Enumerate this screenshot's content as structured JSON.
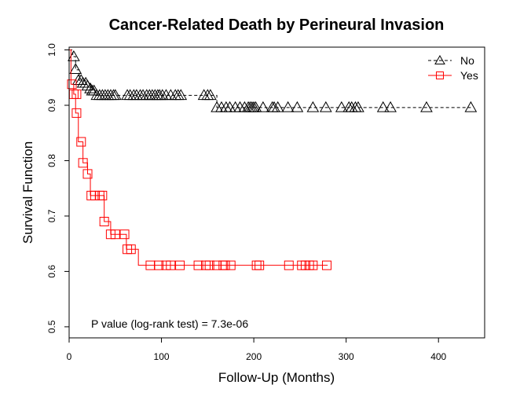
{
  "chart_data": {
    "type": "line",
    "title": "Cancer-Related Death by Perineural Invasion",
    "xlabel": "Follow-Up (Months)",
    "ylabel": "Survival Function",
    "xlim": [
      0,
      450
    ],
    "ylim": [
      0.48,
      1.005
    ],
    "xticks": [
      0,
      100,
      200,
      300,
      400
    ],
    "yticks": [
      0.5,
      0.6,
      0.7,
      0.8,
      0.9,
      1.0
    ],
    "grid": false,
    "legend_position": "top-right",
    "annotation": "P value (log-rank test) = 7.3e-06",
    "series": [
      {
        "name": "No",
        "color": "#000000",
        "line_style": "dashed",
        "marker": "triangle",
        "steps": [
          [
            0,
            1.0
          ],
          [
            4,
            0.988
          ],
          [
            7,
            0.964
          ],
          [
            11,
            0.945
          ],
          [
            18,
            0.938
          ],
          [
            23,
            0.928
          ],
          [
            28,
            0.918
          ],
          [
            160,
            0.896
          ],
          [
            435,
            0.896
          ]
        ],
        "censored": [
          [
            5,
            0.988
          ],
          [
            7,
            0.965
          ],
          [
            10,
            0.945
          ],
          [
            13,
            0.945
          ],
          [
            15,
            0.94
          ],
          [
            18,
            0.94
          ],
          [
            20,
            0.935
          ],
          [
            23,
            0.93
          ],
          [
            25,
            0.926
          ],
          [
            27,
            0.926
          ],
          [
            30,
            0.918
          ],
          [
            33,
            0.918
          ],
          [
            36,
            0.918
          ],
          [
            39,
            0.918
          ],
          [
            42,
            0.918
          ],
          [
            45,
            0.918
          ],
          [
            48,
            0.918
          ],
          [
            50,
            0.918
          ],
          [
            63,
            0.918
          ],
          [
            66,
            0.918
          ],
          [
            70,
            0.918
          ],
          [
            73,
            0.918
          ],
          [
            77,
            0.918
          ],
          [
            80,
            0.918
          ],
          [
            84,
            0.918
          ],
          [
            87,
            0.918
          ],
          [
            90,
            0.918
          ],
          [
            93,
            0.918
          ],
          [
            96,
            0.918
          ],
          [
            98,
            0.918
          ],
          [
            101,
            0.918
          ],
          [
            105,
            0.918
          ],
          [
            110,
            0.918
          ],
          [
            115,
            0.918
          ],
          [
            118,
            0.918
          ],
          [
            121,
            0.918
          ],
          [
            146,
            0.918
          ],
          [
            150,
            0.918
          ],
          [
            153,
            0.918
          ],
          [
            160,
            0.896
          ],
          [
            165,
            0.896
          ],
          [
            170,
            0.896
          ],
          [
            174,
            0.896
          ],
          [
            180,
            0.896
          ],
          [
            185,
            0.896
          ],
          [
            190,
            0.896
          ],
          [
            194,
            0.896
          ],
          [
            196,
            0.896
          ],
          [
            198,
            0.896
          ],
          [
            200,
            0.896
          ],
          [
            202,
            0.896
          ],
          [
            210,
            0.896
          ],
          [
            220,
            0.896
          ],
          [
            222,
            0.896
          ],
          [
            226,
            0.896
          ],
          [
            237,
            0.896
          ],
          [
            247,
            0.896
          ],
          [
            264,
            0.896
          ],
          [
            278,
            0.896
          ],
          [
            295,
            0.896
          ],
          [
            303,
            0.896
          ],
          [
            306,
            0.896
          ],
          [
            310,
            0.896
          ],
          [
            313,
            0.896
          ],
          [
            340,
            0.896
          ],
          [
            348,
            0.896
          ],
          [
            387,
            0.896
          ],
          [
            435,
            0.896
          ]
        ]
      },
      {
        "name": "Yes",
        "color": "#ff0000",
        "line_style": "solid",
        "marker": "square",
        "steps": [
          [
            0,
            1.0
          ],
          [
            2,
            0.938
          ],
          [
            5,
            0.92
          ],
          [
            7,
            0.886
          ],
          [
            10,
            0.834
          ],
          [
            15,
            0.796
          ],
          [
            20,
            0.776
          ],
          [
            23,
            0.737
          ],
          [
            38,
            0.69
          ],
          [
            45,
            0.667
          ],
          [
            62,
            0.64
          ],
          [
            75,
            0.611
          ],
          [
            280,
            0.611
          ]
        ],
        "censored": [
          [
            3,
            0.938
          ],
          [
            5,
            0.92
          ],
          [
            8,
            0.92
          ],
          [
            8,
            0.886
          ],
          [
            13,
            0.834
          ],
          [
            15,
            0.796
          ],
          [
            20,
            0.776
          ],
          [
            24,
            0.737
          ],
          [
            28,
            0.737
          ],
          [
            33,
            0.737
          ],
          [
            36,
            0.737
          ],
          [
            38,
            0.69
          ],
          [
            45,
            0.667
          ],
          [
            50,
            0.667
          ],
          [
            60,
            0.667
          ],
          [
            63,
            0.64
          ],
          [
            67,
            0.64
          ],
          [
            88,
            0.611
          ],
          [
            97,
            0.611
          ],
          [
            105,
            0.611
          ],
          [
            110,
            0.611
          ],
          [
            120,
            0.611
          ],
          [
            140,
            0.611
          ],
          [
            148,
            0.611
          ],
          [
            152,
            0.611
          ],
          [
            160,
            0.611
          ],
          [
            167,
            0.611
          ],
          [
            169,
            0.611
          ],
          [
            175,
            0.611
          ],
          [
            203,
            0.611
          ],
          [
            206,
            0.611
          ],
          [
            238,
            0.611
          ],
          [
            252,
            0.611
          ],
          [
            256,
            0.611
          ],
          [
            260,
            0.611
          ],
          [
            264,
            0.611
          ],
          [
            279,
            0.611
          ]
        ]
      }
    ]
  }
}
